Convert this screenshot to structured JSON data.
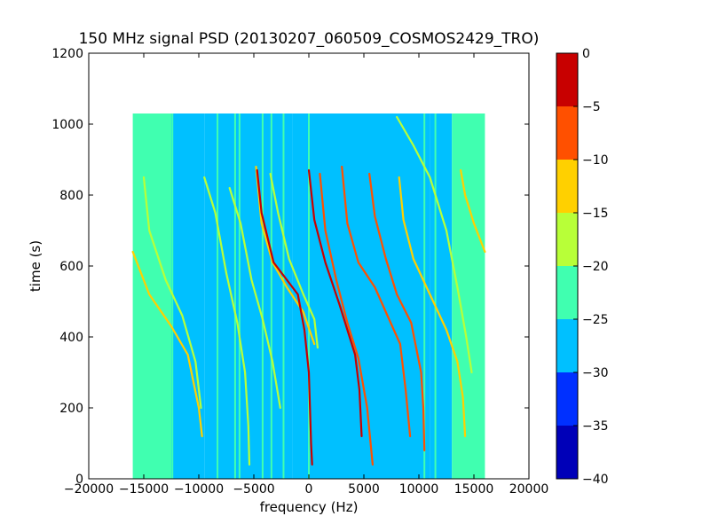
{
  "chart_data": {
    "type": "heatmap",
    "title": "150 MHz signal PSD (20130207_060509_COSMOS2429_TRO)",
    "xlabel": "frequency (Hz)",
    "ylabel": "time (s)",
    "xlim": [
      -20000,
      20000
    ],
    "ylim": [
      0,
      1200
    ],
    "xticks": [
      -20000,
      -15000,
      -10000,
      -5000,
      0,
      5000,
      10000,
      15000,
      20000
    ],
    "xtick_labels": [
      "−20000",
      "−15000",
      "−10000",
      "−5000",
      "0",
      "5000",
      "10000",
      "15000",
      "20000"
    ],
    "yticks": [
      0,
      200,
      400,
      600,
      800,
      1000,
      1200
    ],
    "ytick_labels": [
      "0",
      "200",
      "400",
      "600",
      "800",
      "1000",
      "1200"
    ],
    "data_extent": {
      "x": [
        -16000,
        16000
      ],
      "y": [
        0,
        1030
      ]
    },
    "colorbar": {
      "levels": [
        -40,
        -35,
        -30,
        -25,
        -20,
        -15,
        -10,
        -5,
        0
      ],
      "tick_labels": [
        "−40",
        "−35",
        "−30",
        "−25",
        "−20",
        "−15",
        "−10",
        "−5",
        "0"
      ],
      "colors": [
        "#0000b8",
        "#0030ff",
        "#00c0ff",
        "#40ffb0",
        "#b8ff38",
        "#ffd000",
        "#ff5000",
        "#c80000"
      ]
    },
    "background_bands": [
      {
        "x0": -16000,
        "x1": -12500,
        "level": -22.5
      },
      {
        "x0": -12500,
        "x1": -9500,
        "level": -25.5
      },
      {
        "x0": -9500,
        "x1": -1500,
        "level": -27.5
      },
      {
        "x0": -1500,
        "x1": 11000,
        "level": -27.5
      },
      {
        "x0": 11000,
        "x1": 13000,
        "level": -25.5
      },
      {
        "x0": 13000,
        "x1": 16000,
        "level": -22.5
      }
    ],
    "vertical_lines": [
      {
        "x": -12400,
        "level": -22.5
      },
      {
        "x": -8300,
        "level": -22.5
      },
      {
        "x": -6700,
        "level": -22.5
      },
      {
        "x": -6300,
        "level": -22.5
      },
      {
        "x": -4200,
        "level": -22.5
      },
      {
        "x": -3400,
        "level": -22.5
      },
      {
        "x": -2300,
        "level": -22.5
      },
      {
        "x": 0,
        "level": -22.5
      },
      {
        "x": 10500,
        "level": -22.5
      },
      {
        "x": 11500,
        "level": -22.5
      },
      {
        "x": 14900,
        "level": -22.5
      },
      {
        "x": 15700,
        "level": -22.5
      }
    ],
    "doppler_traces": [
      {
        "level": -12.5,
        "points": [
          [
            -16000,
            640
          ],
          [
            -14500,
            520
          ],
          [
            -12500,
            430
          ],
          [
            -11000,
            350
          ],
          [
            -10000,
            200
          ],
          [
            -9700,
            120
          ]
        ]
      },
      {
        "level": -17.5,
        "points": [
          [
            -15000,
            850
          ],
          [
            -14500,
            700
          ],
          [
            -13000,
            560
          ],
          [
            -11500,
            460
          ],
          [
            -10300,
            330
          ],
          [
            -9800,
            200
          ]
        ]
      },
      {
        "level": -17.5,
        "points": [
          [
            -9500,
            850
          ],
          [
            -8500,
            750
          ],
          [
            -7500,
            580
          ],
          [
            -6500,
            440
          ],
          [
            -5800,
            300
          ],
          [
            -5500,
            150
          ],
          [
            -5400,
            40
          ]
        ]
      },
      {
        "level": -17.5,
        "points": [
          [
            -7200,
            820
          ],
          [
            -6200,
            720
          ],
          [
            -5200,
            560
          ],
          [
            -4200,
            450
          ],
          [
            -3300,
            330
          ],
          [
            -2600,
            200
          ]
        ]
      },
      {
        "level": -12.5,
        "points": [
          [
            -4800,
            880
          ],
          [
            -4300,
            720
          ],
          [
            -3300,
            610
          ],
          [
            -2000,
            540
          ],
          [
            -500,
            470
          ],
          [
            500,
            380
          ]
        ]
      },
      {
        "level": -17.5,
        "points": [
          [
            -3500,
            860
          ],
          [
            -2800,
            750
          ],
          [
            -1800,
            620
          ],
          [
            -500,
            520
          ],
          [
            500,
            450
          ],
          [
            800,
            370
          ]
        ]
      },
      {
        "level": -2.5,
        "points": [
          [
            -4700,
            870
          ],
          [
            -4300,
            750
          ],
          [
            -3200,
            610
          ],
          [
            -1000,
            520
          ],
          [
            -400,
            420
          ],
          [
            0,
            300
          ],
          [
            200,
            100
          ],
          [
            300,
            40
          ]
        ]
      },
      {
        "level": -2.5,
        "points": [
          [
            0,
            870
          ],
          [
            500,
            730
          ],
          [
            1500,
            610
          ],
          [
            2800,
            490
          ],
          [
            3500,
            420
          ],
          [
            4200,
            350
          ],
          [
            4600,
            250
          ],
          [
            4800,
            120
          ]
        ]
      },
      {
        "level": -7.5,
        "points": [
          [
            1000,
            860
          ],
          [
            1500,
            700
          ],
          [
            2500,
            560
          ],
          [
            3500,
            440
          ],
          [
            4500,
            340
          ],
          [
            5300,
            200
          ],
          [
            5800,
            40
          ]
        ]
      },
      {
        "level": -7.5,
        "points": [
          [
            3000,
            880
          ],
          [
            3500,
            720
          ],
          [
            4500,
            610
          ],
          [
            6000,
            540
          ],
          [
            7000,
            470
          ],
          [
            8300,
            380
          ],
          [
            8800,
            250
          ],
          [
            9200,
            120
          ]
        ]
      },
      {
        "level": -7.5,
        "points": [
          [
            5500,
            860
          ],
          [
            6000,
            740
          ],
          [
            7000,
            620
          ],
          [
            8000,
            520
          ],
          [
            9300,
            440
          ],
          [
            10200,
            300
          ],
          [
            10400,
            200
          ],
          [
            10500,
            80
          ]
        ]
      },
      {
        "level": -12.5,
        "points": [
          [
            8200,
            850
          ],
          [
            8600,
            730
          ],
          [
            9500,
            620
          ],
          [
            11000,
            520
          ],
          [
            12500,
            420
          ],
          [
            13500,
            330
          ],
          [
            14000,
            230
          ],
          [
            14200,
            120
          ]
        ]
      },
      {
        "level": -12.5,
        "points": [
          [
            13800,
            870
          ],
          [
            14200,
            800
          ],
          [
            15000,
            720
          ],
          [
            16000,
            640
          ]
        ]
      },
      {
        "level": -17.5,
        "points": [
          [
            8000,
            1020
          ],
          [
            9500,
            940
          ],
          [
            11000,
            850
          ],
          [
            12500,
            700
          ],
          [
            13500,
            540
          ],
          [
            14300,
            400
          ],
          [
            14800,
            300
          ]
        ]
      }
    ]
  }
}
